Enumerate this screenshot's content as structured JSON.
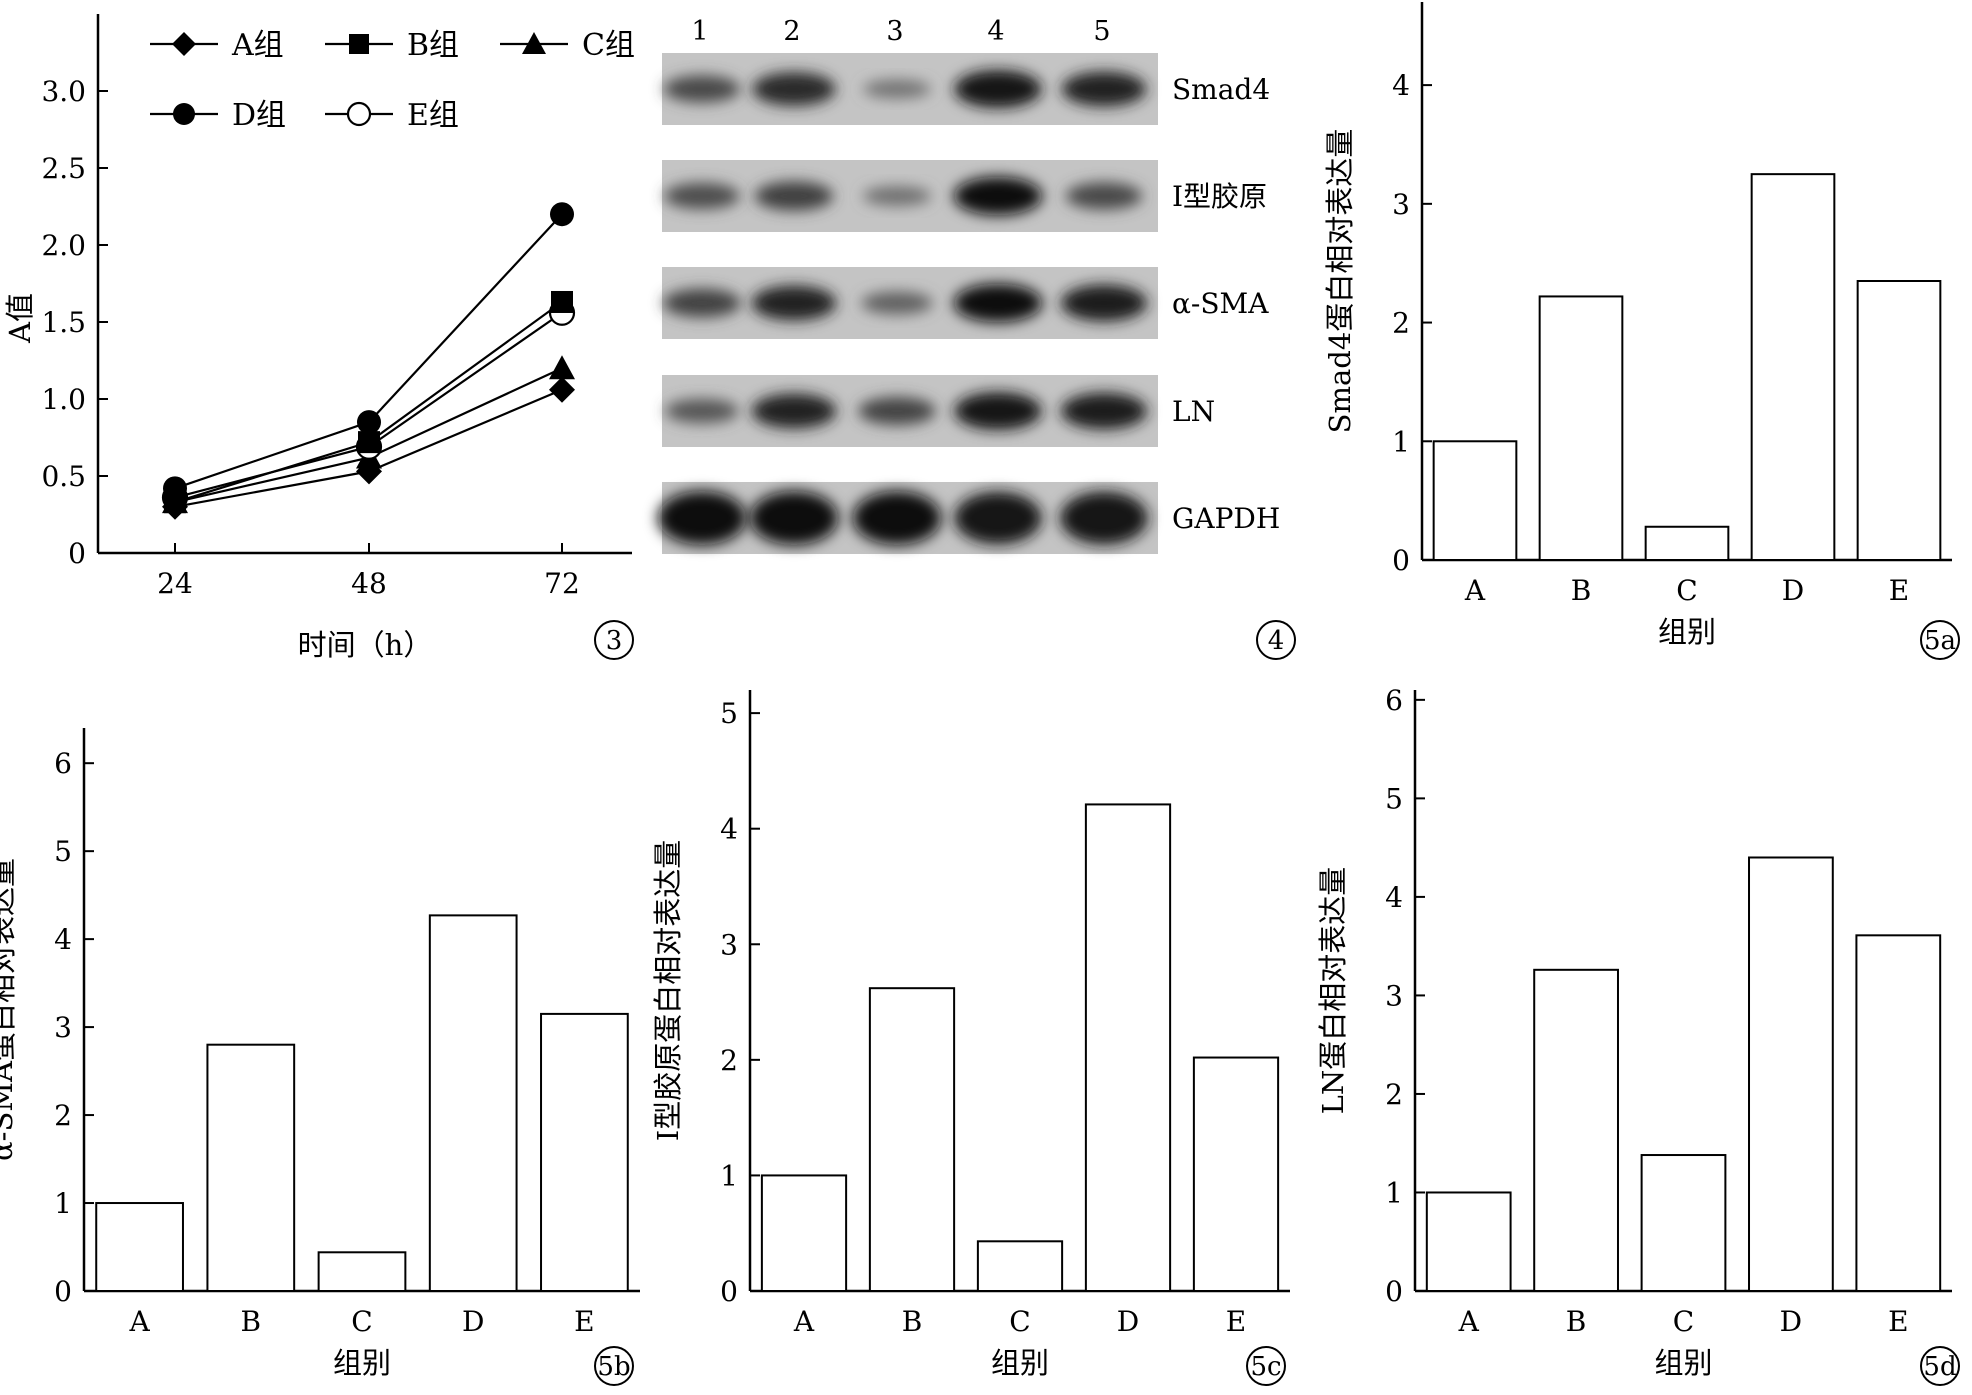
{
  "chart_data": [
    {
      "panel": "3",
      "type": "line",
      "x": [
        24,
        48,
        72
      ],
      "xlabel": "时间（h）",
      "ylabel": "A值",
      "ylim": [
        0,
        3.5
      ],
      "yticks": [
        0,
        0.5,
        1.0,
        1.5,
        2.0,
        2.5,
        3.0
      ],
      "ytick_labels": [
        "0",
        "0.5",
        "1.0",
        "1.5",
        "2.0",
        "2.5",
        "3.0"
      ],
      "legend": "top-left",
      "series": [
        {
          "name": "A组",
          "marker": "diamond",
          "values": [
            0.3,
            0.53,
            1.06
          ]
        },
        {
          "name": "B组",
          "marker": "square",
          "values": [
            0.33,
            0.72,
            1.63
          ]
        },
        {
          "name": "C组",
          "marker": "triangle",
          "values": [
            0.33,
            0.62,
            1.2
          ]
        },
        {
          "name": "D组",
          "marker": "circle-filled",
          "values": [
            0.42,
            0.85,
            2.2
          ]
        },
        {
          "name": "E组",
          "marker": "circle-open",
          "values": [
            0.36,
            0.69,
            1.56
          ]
        }
      ]
    },
    {
      "panel": "5a",
      "type": "bar",
      "categories": [
        "A",
        "B",
        "C",
        "D",
        "E"
      ],
      "values": [
        1.0,
        2.22,
        0.28,
        3.25,
        2.35
      ],
      "xlabel": "组别",
      "ylabel": "Smad4蛋白相对表达量",
      "ylim": [
        0,
        4.7
      ],
      "yticks": [
        0,
        1,
        2,
        3,
        4
      ]
    },
    {
      "panel": "5b",
      "type": "bar",
      "categories": [
        "A",
        "B",
        "C",
        "D",
        "E"
      ],
      "values": [
        1.0,
        2.8,
        0.44,
        4.27,
        3.15
      ],
      "xlabel": "组别",
      "ylabel": "α-SMA蛋白相对表达量",
      "ylim": [
        0,
        6.4
      ],
      "yticks": [
        0,
        1,
        2,
        3,
        4,
        5,
        6
      ]
    },
    {
      "panel": "5c",
      "type": "bar",
      "categories": [
        "A",
        "B",
        "C",
        "D",
        "E"
      ],
      "values": [
        1.0,
        2.62,
        0.43,
        4.21,
        2.02
      ],
      "xlabel": "组别",
      "ylabel": "Ⅰ型胶原蛋白相对表达量",
      "ylim": [
        0,
        5.2
      ],
      "yticks": [
        0,
        1,
        2,
        3,
        4,
        5
      ]
    },
    {
      "panel": "5d",
      "type": "bar",
      "categories": [
        "A",
        "B",
        "C",
        "D",
        "E"
      ],
      "values": [
        1.0,
        3.26,
        1.38,
        4.4,
        3.61
      ],
      "xlabel": "组别",
      "ylabel": "LN蛋白相对表达量",
      "ylim": [
        0,
        6.1
      ],
      "yticks": [
        0,
        1,
        2,
        3,
        4,
        5,
        6
      ]
    }
  ],
  "blot": {
    "panel": "4",
    "lanes": [
      "1",
      "2",
      "3",
      "4",
      "5"
    ],
    "bands": [
      {
        "label": "Smad4",
        "intensity": [
          0.55,
          0.78,
          0.25,
          0.92,
          0.82
        ]
      },
      {
        "label": "Ⅰ型胶原",
        "intensity": [
          0.52,
          0.62,
          0.28,
          0.95,
          0.55
        ]
      },
      {
        "label": "α-SMA",
        "intensity": [
          0.6,
          0.82,
          0.38,
          0.95,
          0.88
        ]
      },
      {
        "label": "LN",
        "intensity": [
          0.45,
          0.82,
          0.58,
          0.92,
          0.88
        ]
      },
      {
        "label": "GAPDH",
        "intensity": [
          0.95,
          0.95,
          0.95,
          0.92,
          0.93
        ]
      }
    ]
  },
  "panel_numbers": [
    "3",
    "4",
    "5a",
    "5b",
    "5c",
    "5d"
  ]
}
